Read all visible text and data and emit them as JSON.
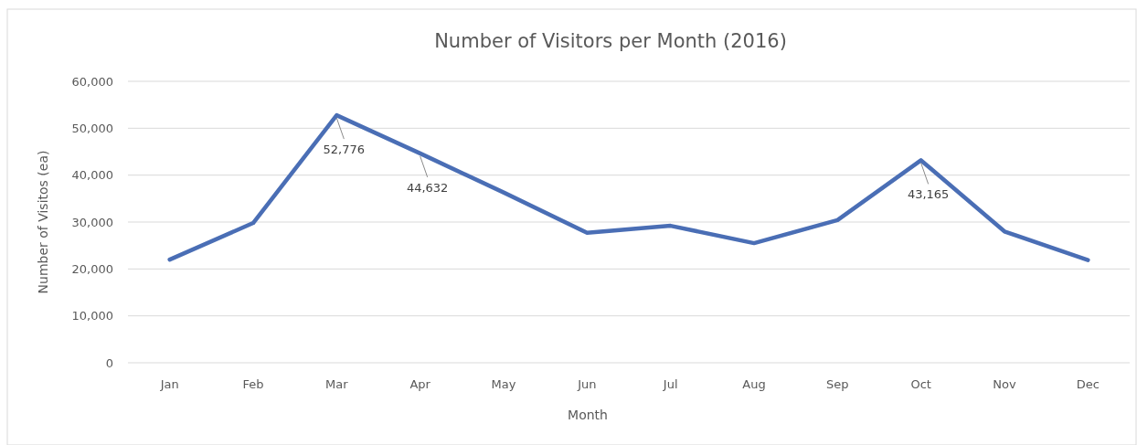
{
  "chart_data": {
    "type": "line",
    "title": "Number of Visitors per Month (2016)",
    "xlabel": "Month",
    "ylabel": "Number  of Visitos (ea)",
    "categories": [
      "Jan",
      "Feb",
      "Mar",
      "Apr",
      "May",
      "Jun",
      "Jul",
      "Aug",
      "Sep",
      "Oct",
      "Nov",
      "Dec"
    ],
    "series": [
      {
        "color": "#4a6eb5",
        "values": [
          22000,
          29800,
          52776,
          44632,
          36300,
          27700,
          29200,
          25500,
          30400,
          43165,
          28000,
          21900
        ],
        "value_labels": [
          null,
          null,
          "52,776",
          "44,632",
          null,
          null,
          null,
          null,
          null,
          "43,165",
          null,
          null
        ]
      }
    ],
    "ylim": [
      0,
      60000
    ],
    "yticks": [
      {
        "value": 0,
        "label": "0"
      },
      {
        "value": 10000,
        "label": "10,000"
      },
      {
        "value": 20000,
        "label": "20,000"
      },
      {
        "value": 30000,
        "label": "30,000"
      },
      {
        "value": 40000,
        "label": "40,000"
      },
      {
        "value": 50000,
        "label": "50,000"
      },
      {
        "value": 60000,
        "label": "60,000"
      }
    ],
    "grid": "y",
    "marker": "none",
    "line_style": "solid"
  }
}
